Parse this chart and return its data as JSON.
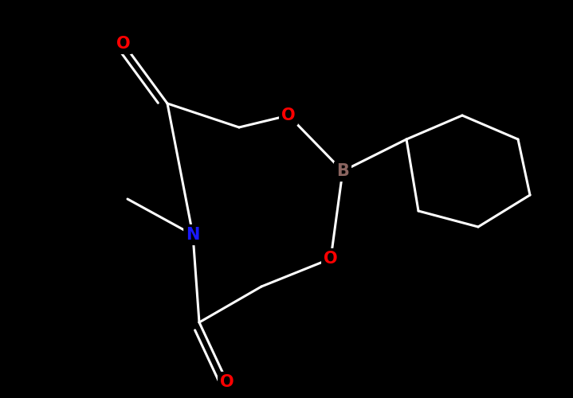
{
  "background_color": "#000000",
  "bond_color": "#ffffff",
  "atom_colors": {
    "O": "#ff0000",
    "N": "#1a1aff",
    "B": "#8b6560",
    "C": "#ffffff"
  },
  "figsize": [
    7.19,
    5.0
  ],
  "dpi": 100,
  "lw": 2.2,
  "fontsize": 15
}
